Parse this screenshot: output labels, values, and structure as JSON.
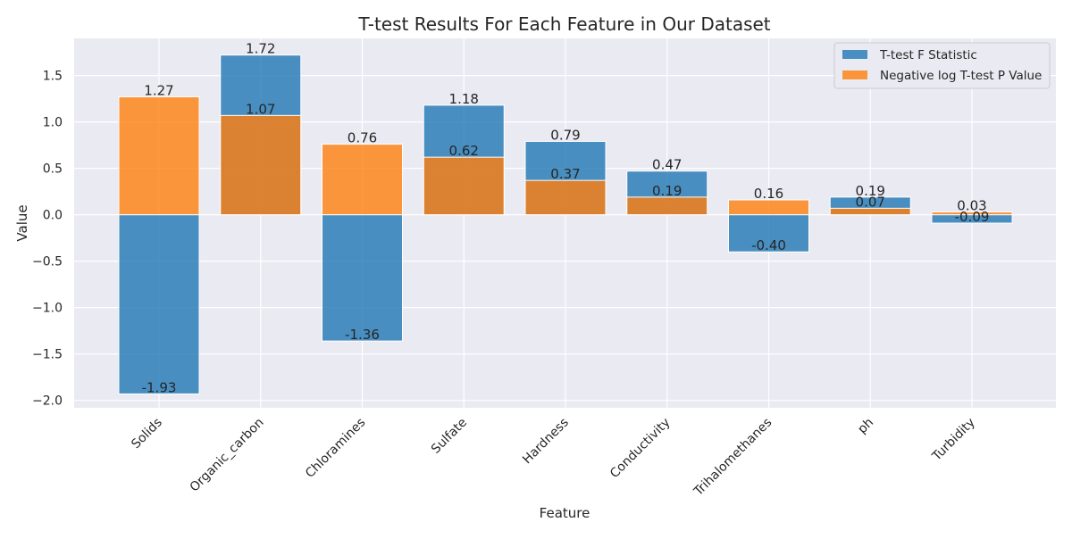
{
  "chart_data": {
    "type": "bar",
    "title": "T-test Results For Each Feature in Our Dataset",
    "xlabel": "Feature",
    "ylabel": "Value",
    "ylim": [
      -2.08,
      1.9
    ],
    "yticks": [
      -2.0,
      -1.5,
      -1.0,
      -0.5,
      0.0,
      0.5,
      1.0,
      1.5
    ],
    "ytick_labels": [
      "−2.0",
      "−1.5",
      "−1.0",
      "−0.5",
      "0.0",
      "0.5",
      "1.0",
      "1.5"
    ],
    "grid": true,
    "legend_position": "top-right",
    "categories": [
      "Solids",
      "Organic_carbon",
      "Chloramines",
      "Sulfate",
      "Hardness",
      "Conductivity",
      "Trihalomethanes",
      "ph",
      "Turbidity"
    ],
    "series": [
      {
        "name": "T-test F Statistic",
        "color": "#1f77b4",
        "values": [
          -1.93,
          1.72,
          -1.36,
          1.18,
          0.79,
          0.47,
          -0.4,
          0.19,
          -0.09
        ],
        "labels": [
          "-1.93",
          "1.72",
          "-1.36",
          "1.18",
          "0.79",
          "0.47",
          "-0.40",
          "0.19",
          "-0.09"
        ]
      },
      {
        "name": "Negative log T-test P Value",
        "color": "#ff7f0e",
        "values": [
          1.27,
          1.07,
          0.76,
          0.62,
          0.37,
          0.19,
          0.16,
          0.07,
          0.03
        ],
        "labels": [
          "1.27",
          "1.07",
          "0.76",
          "0.62",
          "0.37",
          "0.19",
          "0.16",
          "0.07",
          "0.03"
        ]
      }
    ]
  }
}
